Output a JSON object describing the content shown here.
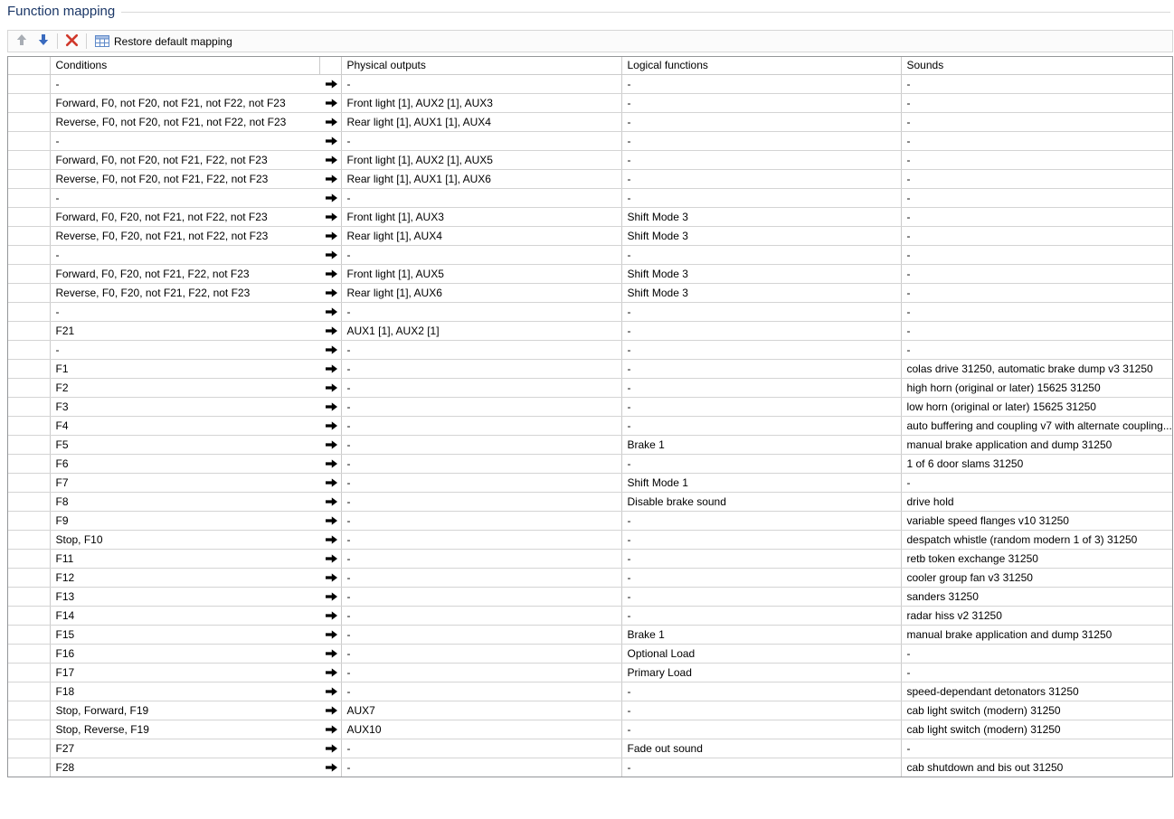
{
  "title": "Function mapping",
  "colors": {
    "title_text": "#1b3767",
    "up_arrow": "#a8adb4",
    "up_arrow_edge": "#8d939b",
    "down_arrow": "#3a6bbf",
    "down_arrow_edge": "#2c549c",
    "delete_x": "#d0382b",
    "grid_icon_line": "#5d88c8",
    "grid_icon_header": "#a8c0e4"
  },
  "toolbar": {
    "icons": [
      "move-up-arrow-icon",
      "move-down-arrow-icon",
      "red-x-delete-icon",
      "table-grid-icon"
    ],
    "restore_label": "Restore default mapping"
  },
  "table": {
    "headers": {
      "conditions": "Conditions",
      "physical": "Physical outputs",
      "logical": "Logical functions",
      "sounds": "Sounds"
    },
    "arrow_icon": "maps-to-arrow-icon",
    "rows": [
      {
        "condition": "-",
        "physical": "-",
        "logical": "-",
        "sound": "-"
      },
      {
        "condition": "Forward, F0, not F20, not F21, not F22, not F23",
        "physical": "Front light [1], AUX2 [1], AUX3",
        "logical": "-",
        "sound": "-"
      },
      {
        "condition": "Reverse, F0, not F20, not F21, not F22, not F23",
        "physical": "Rear light [1], AUX1 [1], AUX4",
        "logical": "-",
        "sound": "-"
      },
      {
        "condition": "-",
        "physical": "-",
        "logical": "-",
        "sound": "-"
      },
      {
        "condition": "Forward, F0, not F20, not F21, F22, not F23",
        "physical": "Front light [1], AUX2 [1], AUX5",
        "logical": "-",
        "sound": "-"
      },
      {
        "condition": "Reverse, F0, not F20, not F21, F22, not F23",
        "physical": "Rear light [1], AUX1 [1], AUX6",
        "logical": "-",
        "sound": "-"
      },
      {
        "condition": "-",
        "physical": "-",
        "logical": "-",
        "sound": "-"
      },
      {
        "condition": "Forward, F0, F20, not F21, not F22, not F23",
        "physical": "Front light [1], AUX3",
        "logical": "Shift Mode 3",
        "sound": "-"
      },
      {
        "condition": "Reverse, F0, F20, not F21, not F22, not F23",
        "physical": "Rear light [1], AUX4",
        "logical": "Shift Mode 3",
        "sound": "-"
      },
      {
        "condition": "-",
        "physical": "-",
        "logical": "-",
        "sound": "-"
      },
      {
        "condition": "Forward, F0, F20, not F21, F22, not F23",
        "physical": "Front light [1], AUX5",
        "logical": "Shift Mode 3",
        "sound": "-"
      },
      {
        "condition": "Reverse, F0, F20, not F21, F22, not F23",
        "physical": "Rear light [1], AUX6",
        "logical": "Shift Mode 3",
        "sound": "-"
      },
      {
        "condition": "-",
        "physical": "-",
        "logical": "-",
        "sound": "-"
      },
      {
        "condition": "F21",
        "physical": "AUX1 [1], AUX2 [1]",
        "logical": "-",
        "sound": "-"
      },
      {
        "condition": "-",
        "physical": "-",
        "logical": "-",
        "sound": "-"
      },
      {
        "condition": "F1",
        "physical": "-",
        "logical": "-",
        "sound": "colas drive 31250, automatic brake dump v3 31250"
      },
      {
        "condition": "F2",
        "physical": "-",
        "logical": "-",
        "sound": "high horn (original or later) 15625 31250"
      },
      {
        "condition": "F3",
        "physical": "-",
        "logical": "-",
        "sound": "low horn (original or later) 15625 31250"
      },
      {
        "condition": "F4",
        "physical": "-",
        "logical": "-",
        "sound": "auto buffering and coupling v7 with alternate coupling..."
      },
      {
        "condition": "F5",
        "physical": "-",
        "logical": "Brake 1",
        "sound": "manual brake application and dump 31250"
      },
      {
        "condition": "F6",
        "physical": "-",
        "logical": "-",
        "sound": "1 of 6 door slams 31250"
      },
      {
        "condition": "F7",
        "physical": "-",
        "logical": "Shift Mode 1",
        "sound": "-"
      },
      {
        "condition": "F8",
        "physical": "-",
        "logical": "Disable brake sound",
        "sound": "drive hold"
      },
      {
        "condition": "F9",
        "physical": "-",
        "logical": "-",
        "sound": "variable speed flanges v10 31250"
      },
      {
        "condition": "Stop, F10",
        "physical": "-",
        "logical": "-",
        "sound": "despatch whistle (random modern 1 of 3) 31250"
      },
      {
        "condition": "F11",
        "physical": "-",
        "logical": "-",
        "sound": "retb token exchange 31250"
      },
      {
        "condition": "F12",
        "physical": "-",
        "logical": "-",
        "sound": "cooler group fan v3 31250"
      },
      {
        "condition": "F13",
        "physical": "-",
        "logical": "-",
        "sound": "sanders 31250"
      },
      {
        "condition": "F14",
        "physical": "-",
        "logical": "-",
        "sound": "radar hiss v2 31250"
      },
      {
        "condition": "F15",
        "physical": "-",
        "logical": "Brake 1",
        "sound": "manual brake application and dump 31250"
      },
      {
        "condition": "F16",
        "physical": "-",
        "logical": "Optional Load",
        "sound": "-"
      },
      {
        "condition": "F17",
        "physical": "-",
        "logical": "Primary Load",
        "sound": "-"
      },
      {
        "condition": "F18",
        "physical": "-",
        "logical": "-",
        "sound": "speed-dependant detonators 31250"
      },
      {
        "condition": "Stop, Forward, F19",
        "physical": "AUX7",
        "logical": "-",
        "sound": "cab light switch (modern) 31250"
      },
      {
        "condition": "Stop, Reverse, F19",
        "physical": "AUX10",
        "logical": "-",
        "sound": "cab light switch (modern) 31250"
      },
      {
        "condition": "F27",
        "physical": "-",
        "logical": "Fade out sound",
        "sound": "-"
      },
      {
        "condition": "F28",
        "physical": "-",
        "logical": "-",
        "sound": "cab shutdown and bis out 31250"
      }
    ]
  }
}
